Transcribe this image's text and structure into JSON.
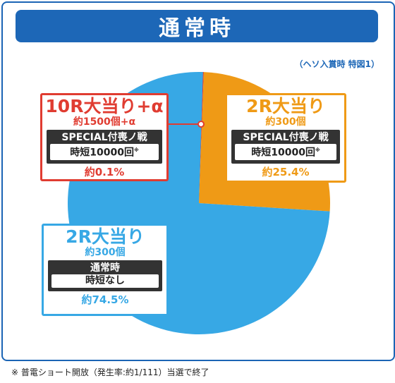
{
  "header": {
    "title": "通常時"
  },
  "subnote": "（ヘソ入賞時 特図1）",
  "footnote": "※ 普電ショート開放（発生率:約1/111）当選で終了",
  "colors": {
    "frame": "#1b64b5",
    "red": "#e03c31",
    "orange": "#ef9a16",
    "blue": "#37a8e5"
  },
  "labels": {
    "red": {
      "title": "10R大当り+α",
      "sub": "約1500個+α",
      "block_title": "SPECIAL付喪ノ戦",
      "block_value": "時短10000回",
      "mark": "※",
      "pct": "約0.1%"
    },
    "orange": {
      "title": "2R大当り",
      "sub": "約300個",
      "block_title": "SPECIAL付喪ノ戦",
      "block_value": "時短10000回",
      "mark": "※",
      "pct": "約25.4%"
    },
    "blue": {
      "title": "2R大当り",
      "sub": "約300個",
      "block_title": "通常時",
      "block_value": "時短なし",
      "mark": "",
      "pct": "約74.5%"
    }
  },
  "chart_data": {
    "type": "pie",
    "title": "通常時",
    "subtitle": "（ヘソ入賞時 特図1）",
    "categories": [
      "10R大当り+α",
      "2R大当り (SPECIAL付喪ノ戦)",
      "2R大当り (通常時)"
    ],
    "values": [
      0.1,
      25.4,
      74.5
    ],
    "colors": [
      "#e03c31",
      "#ef9a16",
      "#37a8e5"
    ],
    "start": "top, clockwise"
  }
}
